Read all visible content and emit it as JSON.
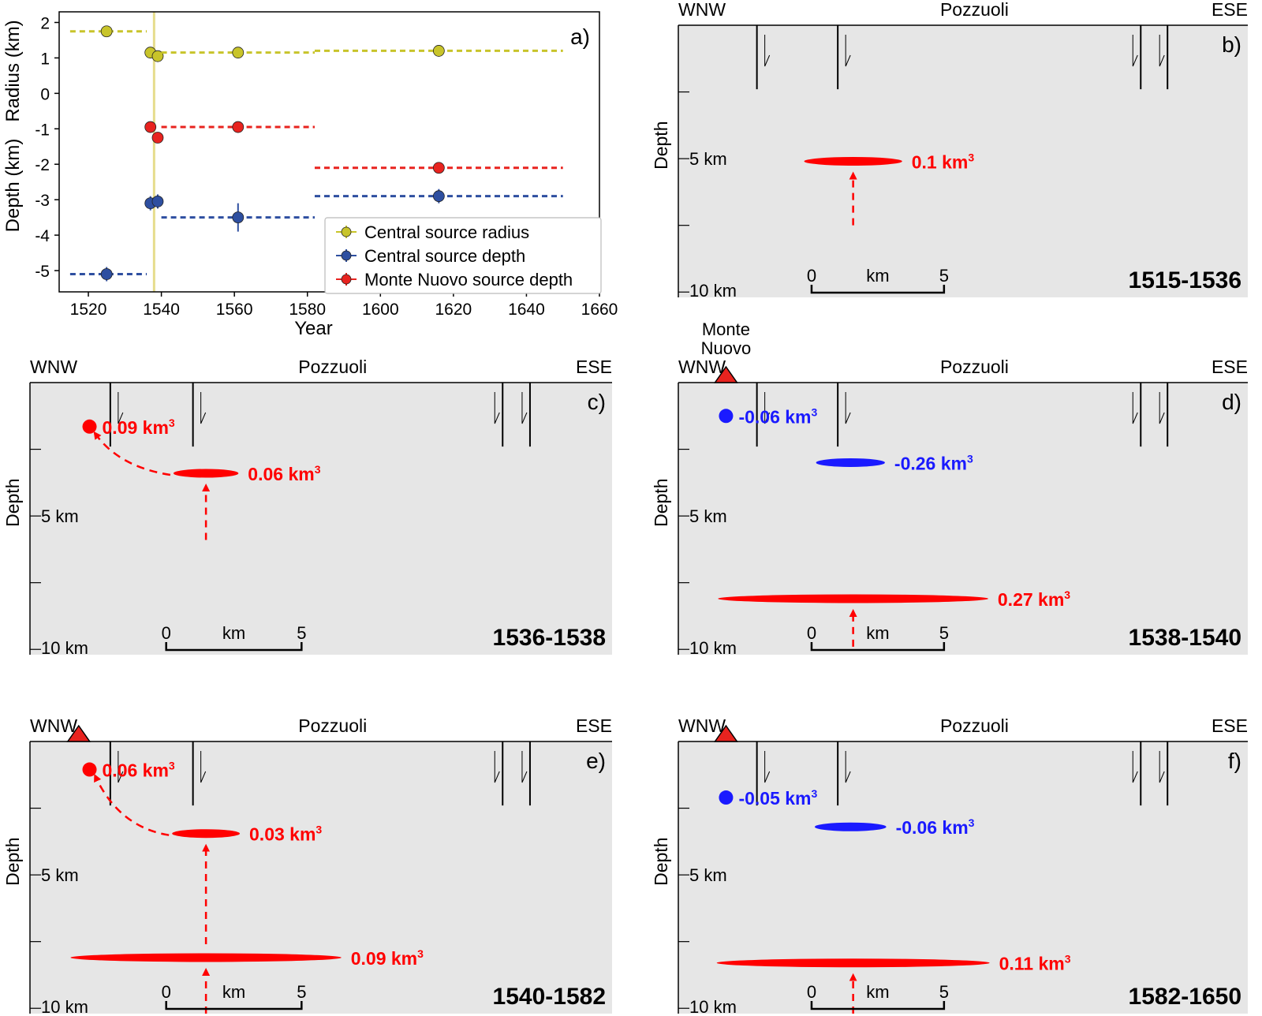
{
  "colors": {
    "radius": "#c8c42a",
    "central_depth": "#2e4fa0",
    "monte_nuovo": "#e8231f",
    "inflation": "#ff0000",
    "deflation": "#1a1aff",
    "section_bg": "#e6e6e6",
    "eruption_line": "#e6dc8c"
  },
  "chart_data": [
    {
      "type": "scatter",
      "panel_label": "a)",
      "xlabel": "Year",
      "ylabel_top": "Radius (km)",
      "ylabel_bottom": "Depth (km)",
      "xlim": [
        1512,
        1660
      ],
      "ylim": [
        -5.6,
        2.3
      ],
      "xticks": [
        "1520",
        "1540",
        "1560",
        "1580",
        "1600",
        "1620",
        "1640",
        "1660"
      ],
      "yticks": [
        "2",
        "1",
        "0",
        "-1",
        "-2",
        "-3",
        "-4",
        "-5"
      ],
      "eruption_year": 1538,
      "series": [
        {
          "name": "Central source radius",
          "color_key": "radius",
          "points": [
            {
              "x": 1525,
              "y": 1.75,
              "xmin": 1515,
              "xmax": 1536,
              "yerr": 0.05
            },
            {
              "x": 1537,
              "y": 1.15,
              "xmin": 1537,
              "xmax": 1537,
              "yerr": 0.05
            },
            {
              "x": 1539,
              "y": 1.05,
              "xmin": 1539,
              "xmax": 1539,
              "yerr": 0.05
            },
            {
              "x": 1561,
              "y": 1.15,
              "xmin": 1540,
              "xmax": 1582,
              "yerr": 0.05
            },
            {
              "x": 1616,
              "y": 1.2,
              "xmin": 1582,
              "xmax": 1650,
              "yerr": 0.05
            }
          ]
        },
        {
          "name": "Central source depth",
          "color_key": "central_depth",
          "points": [
            {
              "x": 1525,
              "y": -5.1,
              "xmin": 1515,
              "xmax": 1536,
              "yerr": 0.2
            },
            {
              "x": 1537,
              "y": -3.1,
              "xmin": 1537,
              "xmax": 1537,
              "yerr": 0.2
            },
            {
              "x": 1539,
              "y": -3.05,
              "xmin": 1539,
              "xmax": 1539,
              "yerr": 0.2
            },
            {
              "x": 1561,
              "y": -3.5,
              "xmin": 1540,
              "xmax": 1582,
              "yerr": 0.4
            },
            {
              "x": 1616,
              "y": -2.9,
              "xmin": 1582,
              "xmax": 1650,
              "yerr": 0.2
            }
          ]
        },
        {
          "name": "Monte Nuovo source depth",
          "color_key": "monte_nuovo",
          "points": [
            {
              "x": 1537,
              "y": -0.95,
              "xmin": 1537,
              "xmax": 1537,
              "yerr": 0.05
            },
            {
              "x": 1539,
              "y": -1.25,
              "xmin": 1539,
              "xmax": 1539,
              "yerr": 0.05
            },
            {
              "x": 1561,
              "y": -0.95,
              "xmin": 1540,
              "xmax": 1582,
              "yerr": 0.05
            },
            {
              "x": 1616,
              "y": -2.1,
              "xmin": 1582,
              "xmax": 1650,
              "yerr": 0.05
            }
          ]
        }
      ]
    },
    {
      "type": "diagram",
      "panel_label": "b)",
      "period": "1515-1536",
      "monte_nuovo_vent": false,
      "sources": [
        {
          "shape": "sill",
          "x_km": 6.6,
          "depth_km": 5.1,
          "width_km": 3.7,
          "sign": "inflation",
          "label": "0.1 km",
          "arrow_from_depth_km": 7.5
        }
      ],
      "links": []
    },
    {
      "type": "diagram",
      "panel_label": "c)",
      "period": "1536-1538",
      "monte_nuovo_vent": false,
      "sources": [
        {
          "shape": "point",
          "x_km": 2.2,
          "depth_km": 1.65,
          "sign": "inflation",
          "label": "0.09 km"
        },
        {
          "shape": "sill",
          "x_km": 6.5,
          "depth_km": 3.4,
          "width_km": 2.4,
          "sign": "inflation",
          "label": "0.06 km",
          "arrow_from_depth_km": 5.9
        }
      ],
      "links": [
        {
          "from": 1,
          "to": 0
        }
      ]
    },
    {
      "type": "diagram",
      "panel_label": "d)",
      "period": "1538-1540",
      "monte_nuovo_vent": true,
      "vent_label_lines": [
        "Monte",
        "Nuovo"
      ],
      "sources": [
        {
          "shape": "point",
          "x_km": 1.8,
          "depth_km": 1.25,
          "sign": "deflation",
          "label": "-0.06 km"
        },
        {
          "shape": "sill",
          "x_km": 6.5,
          "depth_km": 3.0,
          "width_km": 2.6,
          "sign": "deflation",
          "label": "-0.26 km"
        },
        {
          "shape": "sill",
          "x_km": 6.6,
          "depth_km": 8.1,
          "width_km": 10.2,
          "sign": "inflation",
          "label": "0.27 km",
          "arrow_from_depth_km": 9.9
        }
      ],
      "links": []
    },
    {
      "type": "diagram",
      "panel_label": "e)",
      "period": "1540-1582",
      "monte_nuovo_vent": true,
      "sources": [
        {
          "shape": "point",
          "x_km": 2.2,
          "depth_km": 1.05,
          "sign": "inflation",
          "label": "0.06 km"
        },
        {
          "shape": "sill",
          "x_km": 6.5,
          "depth_km": 3.45,
          "width_km": 2.5,
          "sign": "inflation",
          "label": "0.03 km",
          "arrow_from_depth_km": 7.6
        },
        {
          "shape": "sill",
          "x_km": 6.5,
          "depth_km": 8.1,
          "width_km": 10.0,
          "sign": "inflation",
          "label": "0.09 km",
          "arrow_from_depth_km": 10.2
        }
      ],
      "links": [
        {
          "from": 1,
          "to": 0
        }
      ]
    },
    {
      "type": "diagram",
      "panel_label": "f)",
      "period": "1582-1650",
      "monte_nuovo_vent": true,
      "sources": [
        {
          "shape": "point",
          "x_km": 1.8,
          "depth_km": 2.1,
          "sign": "deflation",
          "label": "-0.05 km"
        },
        {
          "shape": "sill",
          "x_km": 6.5,
          "depth_km": 3.2,
          "width_km": 2.7,
          "sign": "deflation",
          "label": "-0.06 km"
        },
        {
          "shape": "sill",
          "x_km": 6.6,
          "depth_km": 8.3,
          "width_km": 10.3,
          "sign": "inflation",
          "label": "0.11 km",
          "arrow_from_depth_km": 10.2
        }
      ],
      "links": []
    }
  ],
  "section_labels": {
    "west": "WNW",
    "east": "ESE",
    "town": "Pozzuoli",
    "depth_axis": "Depth",
    "depth_5": "5 km",
    "depth_10": "10 km",
    "scale_0": "0",
    "scale_5": "5",
    "scale_unit": "km",
    "volume_superscript": "3"
  }
}
